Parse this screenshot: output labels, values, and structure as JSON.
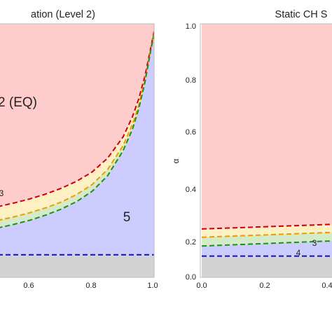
{
  "colors": {
    "eq_fill": "#ffcccc",
    "r3_fill": "#fdf1c4",
    "r4_fill": "#d3ebc9",
    "r5_fill": "#ccccff",
    "grey_fill": "#d3d3d3",
    "red_line": "#cc0000",
    "orange_line": "#e6a100",
    "green_line": "#228b22",
    "blue_line": "#1111bb",
    "frame": "#bbbbbb"
  },
  "chart_data": [
    {
      "type": "area",
      "title": "ation (Level 2)",
      "xlabel": "",
      "ylabel": "",
      "xlim": [
        0.0,
        1.0
      ],
      "ylim": [
        0.0,
        1.0
      ],
      "xticks": [
        "0.6",
        "0.8",
        "1.0"
      ],
      "grid": false,
      "x": [
        0.45,
        0.5,
        0.55,
        0.6,
        0.65,
        0.7,
        0.75,
        0.8,
        0.85,
        0.9,
        0.93,
        0.95,
        0.97,
        0.98,
        0.99,
        1.0
      ],
      "series": [
        {
          "name": "",
          "color": "red_line",
          "values": [
            0.27,
            0.283,
            0.297,
            0.313,
            0.332,
            0.355,
            0.383,
            0.42,
            0.475,
            0.56,
            0.64,
            0.71,
            0.8,
            0.86,
            0.92,
            0.98
          ]
        },
        {
          "name": "",
          "color": "orange_line",
          "values": [
            0.215,
            0.228,
            0.242,
            0.258,
            0.277,
            0.3,
            0.33,
            0.37,
            0.43,
            0.525,
            0.61,
            0.685,
            0.785,
            0.85,
            0.915,
            0.975
          ]
        },
        {
          "name": "",
          "color": "green_line",
          "values": [
            0.185,
            0.198,
            0.212,
            0.228,
            0.248,
            0.272,
            0.302,
            0.343,
            0.405,
            0.505,
            0.59,
            0.67,
            0.775,
            0.842,
            0.91,
            0.97
          ]
        },
        {
          "name": "",
          "color": "blue_line",
          "values": [
            0.09,
            0.09,
            0.09,
            0.09,
            0.09,
            0.09,
            0.09,
            0.09,
            0.09,
            0.09,
            0.09,
            0.09,
            0.09,
            0.09,
            0.09,
            0.09
          ]
        }
      ],
      "regions": [
        "2 (EQ)",
        "3",
        "5"
      ]
    },
    {
      "type": "area",
      "title": "Static CH S",
      "xlabel": "",
      "ylabel": "α",
      "xlim": [
        0.0,
        1.0
      ],
      "ylim": [
        0.0,
        1.0
      ],
      "xticks": [
        "0.0",
        "0.2",
        "0.4"
      ],
      "yticks": [
        "0.0",
        "0.2",
        "0.4",
        "0.6",
        "0.8",
        "1.0"
      ],
      "grid": false,
      "x": [
        0.0,
        0.45
      ],
      "series": [
        {
          "name": "",
          "color": "red_line",
          "values": [
            0.193,
            0.213
          ]
        },
        {
          "name": "",
          "color": "orange_line",
          "values": [
            0.16,
            0.181
          ]
        },
        {
          "name": "",
          "color": "green_line",
          "values": [
            0.125,
            0.147
          ]
        },
        {
          "name": "",
          "color": "blue_line",
          "values": [
            0.085,
            0.085
          ]
        }
      ],
      "regions": [
        "3",
        "4"
      ]
    }
  ]
}
